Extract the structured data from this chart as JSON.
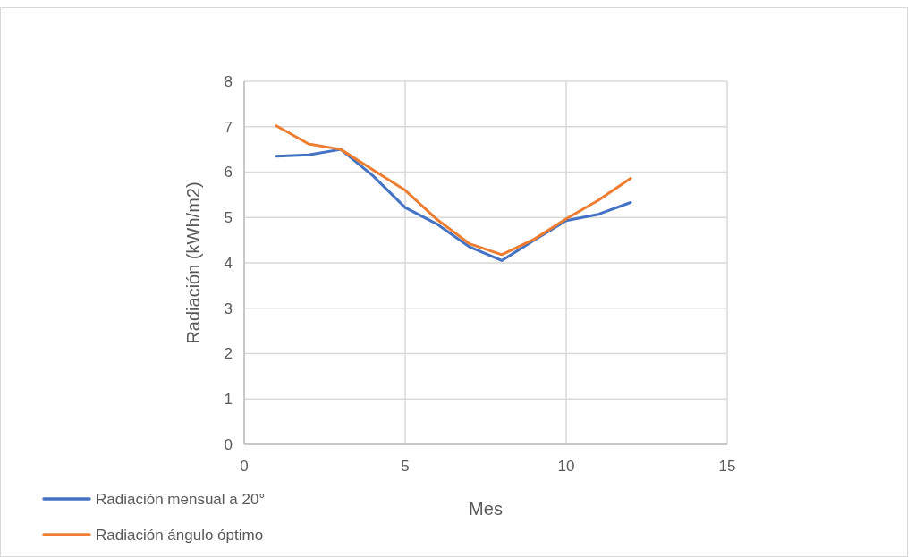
{
  "chart_data": {
    "type": "line",
    "xlabel": "Mes",
    "ylabel": "Radiación (kWh/m2)",
    "x": [
      1,
      2,
      3,
      4,
      5,
      6,
      7,
      8,
      9,
      10,
      11,
      12
    ],
    "series": [
      {
        "name": "Radiación mensual a 20°",
        "color": "#4472c4",
        "values": [
          6.35,
          6.38,
          6.5,
          5.92,
          5.22,
          4.85,
          4.35,
          4.05,
          4.5,
          4.93,
          5.07,
          5.33
        ]
      },
      {
        "name": "Radiación ángulo óptimo",
        "color": "#ed7d31",
        "values": [
          7.02,
          6.62,
          6.5,
          6.05,
          5.6,
          4.95,
          4.42,
          4.18,
          4.52,
          4.97,
          5.38,
          5.86
        ]
      }
    ],
    "xlim": [
      0,
      15
    ],
    "xticks": [
      0,
      5,
      10,
      15
    ],
    "ylim": [
      0,
      8
    ],
    "yticks": [
      0,
      1,
      2,
      3,
      4,
      5,
      6,
      7,
      8
    ],
    "grid": true,
    "legend": "bottom left",
    "marker": "none",
    "line_style": "solid"
  }
}
